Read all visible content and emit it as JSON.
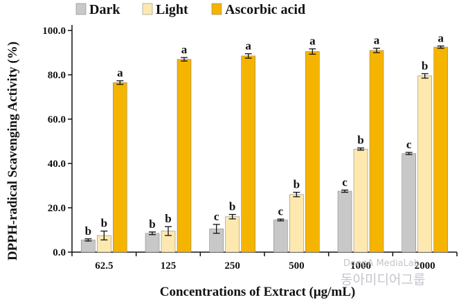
{
  "chart_data": {
    "type": "bar",
    "title": "",
    "xlabel": "Concentrations of Extract (μg/mL)",
    "ylabel": "DPPH-radical Scavenging Activity (%)",
    "ylim": [
      0,
      100
    ],
    "yticks": [
      "0.0",
      "20.0",
      "40.0",
      "60.0",
      "80.0",
      "100.0"
    ],
    "ytick_values": [
      0,
      20,
      40,
      60,
      80,
      100
    ],
    "categories": [
      "62.5",
      "125",
      "250",
      "500",
      "1000",
      "2000"
    ],
    "legend_position": "top",
    "grid": false,
    "series": [
      {
        "name": "Dark",
        "color": "#c8c8c8",
        "values": [
          5.5,
          8.5,
          10.5,
          14.5,
          27.5,
          44.5
        ],
        "errors": [
          0.5,
          0.6,
          2.0,
          0.4,
          0.5,
          0.5
        ],
        "labels": [
          "b",
          "b",
          "c",
          "c",
          "c",
          "c"
        ]
      },
      {
        "name": "Light",
        "color": "#fde9b0",
        "values": [
          7.5,
          9.5,
          16.0,
          26.0,
          46.5,
          79.5
        ],
        "errors": [
          2.0,
          2.0,
          1.0,
          1.0,
          0.5,
          1.0
        ],
        "labels": [
          "b",
          "b",
          "b",
          "b",
          "b",
          "b"
        ]
      },
      {
        "name": "Ascorbic acid",
        "color": "#f5b400",
        "values": [
          76.5,
          87.0,
          88.5,
          90.5,
          91.0,
          92.5
        ],
        "errors": [
          0.8,
          0.8,
          1.0,
          1.2,
          1.0,
          0.5
        ],
        "labels": [
          "a",
          "a",
          "a",
          "a",
          "a",
          "a"
        ]
      }
    ]
  },
  "watermark": {
    "line1": "DongA MediaLab",
    "line2": "동아미디어그룹"
  }
}
